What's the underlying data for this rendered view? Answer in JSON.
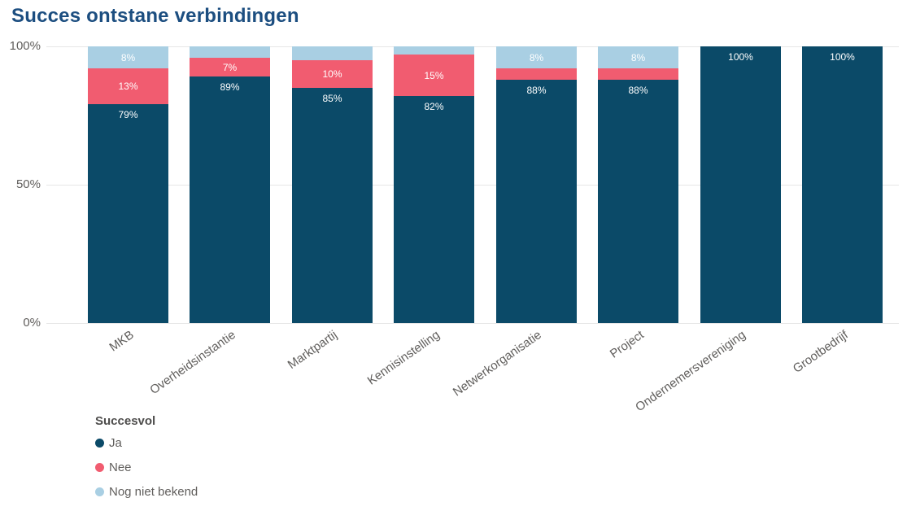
{
  "title": "Succes ontstane verbindingen",
  "chart_data": {
    "type": "bar",
    "variant": "stacked-100-percent-column",
    "title": "Succes ontstane verbindingen",
    "xlabel": "",
    "ylabel": "",
    "ylim": [
      0,
      100
    ],
    "y_ticks": [
      "0%",
      "50%",
      "100%"
    ],
    "grid": true,
    "legend_position": "bottom-left",
    "legend_title": "Succesvol",
    "categories": [
      "MKB",
      "Overheidsinstantie",
      "Marktpartij",
      "Kennisinstelling",
      "Netwerkorganisatie",
      "Project",
      "Ondernemersvereniging",
      "Grootbedrijf"
    ],
    "series": [
      {
        "name": "Ja",
        "color": "#0b4a68",
        "values": [
          79,
          89,
          85,
          82,
          88,
          88,
          100,
          100
        ]
      },
      {
        "name": "Nee",
        "color": "#f15c70",
        "values": [
          13,
          7,
          10,
          15,
          4,
          4,
          0,
          0
        ]
      },
      {
        "name": "Nog niet bekend",
        "color": "#a9cfe3",
        "values": [
          8,
          4,
          5,
          3,
          8,
          8,
          0,
          0
        ]
      }
    ],
    "data_labels": [
      [
        "79%",
        "13%",
        "8%"
      ],
      [
        "89%",
        "7%",
        ""
      ],
      [
        "85%",
        "10%",
        ""
      ],
      [
        "82%",
        "15%",
        ""
      ],
      [
        "88%",
        "",
        "8%"
      ],
      [
        "88%",
        "",
        "8%"
      ],
      [
        "100%",
        "",
        ""
      ],
      [
        "100%",
        "",
        ""
      ]
    ]
  },
  "colors": {
    "title": "#1c4e80",
    "gridline": "#e6e6e6",
    "axis_text": "#605e5c",
    "label_text": "#ffffff",
    "background": "#ffffff"
  }
}
